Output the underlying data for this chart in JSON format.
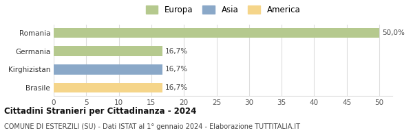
{
  "categories": [
    "Brasile",
    "Kirghizistan",
    "Germania",
    "Romania"
  ],
  "values": [
    16.7,
    16.7,
    16.7,
    50.0
  ],
  "bar_colors": [
    "#f5d58a",
    "#8aa8c8",
    "#b5c98e",
    "#b5c98e"
  ],
  "legend_items": [
    {
      "label": "Europa",
      "color": "#b5c98e"
    },
    {
      "label": "Asia",
      "color": "#8aa8c8"
    },
    {
      "label": "America",
      "color": "#f5d58a"
    }
  ],
  "bar_labels": [
    "16,7%",
    "16,7%",
    "16,7%",
    "50,0%"
  ],
  "xlim": [
    0,
    52
  ],
  "xticks": [
    0,
    5,
    10,
    15,
    20,
    25,
    30,
    35,
    40,
    45,
    50
  ],
  "title_bold": "Cittadini Stranieri per Cittadinanza - 2024",
  "subtitle": "COMUNE DI ESTERZILI (SU) - Dati ISTAT al 1° gennaio 2024 - Elaborazione TUTTITALIA.IT",
  "title_fontsize": 8.5,
  "subtitle_fontsize": 7.0,
  "label_fontsize": 7.5,
  "tick_fontsize": 7.5,
  "legend_fontsize": 8.5,
  "background_color": "#ffffff",
  "grid_color": "#dddddd",
  "bar_height": 0.55
}
